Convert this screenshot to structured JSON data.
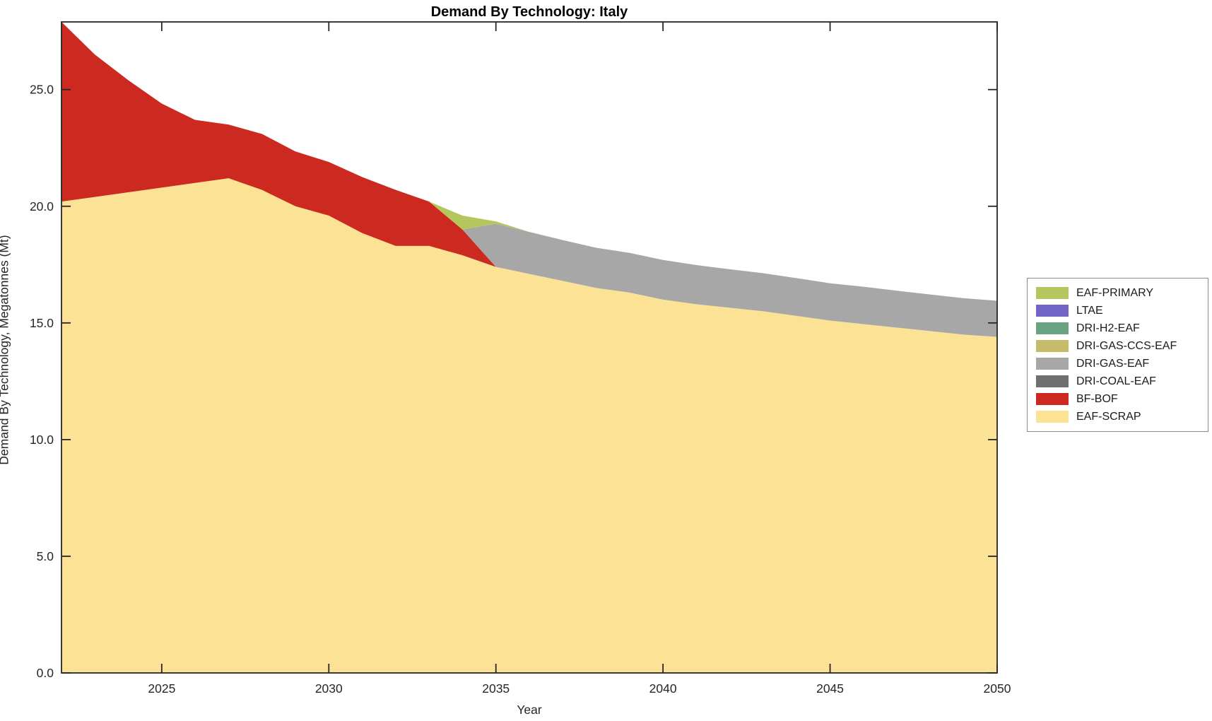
{
  "title": "Demand By Technology: Italy",
  "chart_data": {
    "type": "area",
    "stacked": true,
    "title": "Demand By Technology: Italy",
    "xlabel": "Year",
    "ylabel": "Demand By Technology, Megatonnes (Mt)",
    "xlim": [
      2022,
      2050
    ],
    "ylim": [
      0,
      27.9
    ],
    "xticks": [
      2025,
      2030,
      2035,
      2040,
      2045,
      2050
    ],
    "yticks": [
      0,
      5,
      10,
      15,
      20,
      25
    ],
    "ytick_labels": [
      "0.0",
      "5.0",
      "10.0",
      "15.0",
      "20.0",
      "25.0"
    ],
    "grid": false,
    "legend_position": "right-outside",
    "axis_color": "#262626",
    "x": [
      2022,
      2023,
      2024,
      2025,
      2026,
      2027,
      2028,
      2029,
      2030,
      2031,
      2032,
      2033,
      2034,
      2035,
      2036,
      2037,
      2038,
      2039,
      2040,
      2041,
      2042,
      2043,
      2044,
      2045,
      2046,
      2047,
      2048,
      2049,
      2050
    ],
    "series": [
      {
        "name": "EAF-SCRAP",
        "color": "#fbe294",
        "values": [
          20.2,
          20.4,
          20.6,
          20.8,
          21.0,
          21.2,
          20.7,
          20.0,
          19.6,
          18.85,
          18.3,
          18.3,
          17.9,
          17.4,
          17.1,
          16.8,
          16.5,
          16.3,
          16.0,
          15.8,
          15.65,
          15.5,
          15.3,
          15.1,
          14.95,
          14.8,
          14.65,
          14.5,
          14.4
        ]
      },
      {
        "name": "BF-BOF",
        "color": "#cc2a20",
        "values": [
          7.7,
          6.1,
          4.8,
          3.6,
          2.7,
          2.3,
          2.4,
          2.35,
          2.3,
          2.4,
          2.4,
          1.9,
          1.1,
          0,
          0,
          0,
          0,
          0,
          0,
          0,
          0,
          0,
          0,
          0,
          0,
          0,
          0,
          0,
          0
        ]
      },
      {
        "name": "DRI-COAL-EAF",
        "color": "#6f6f6f",
        "values": [
          0,
          0,
          0,
          0,
          0,
          0,
          0,
          0,
          0,
          0,
          0,
          0,
          0,
          0,
          0,
          0,
          0,
          0,
          0,
          0,
          0,
          0,
          0,
          0,
          0,
          0,
          0,
          0,
          0
        ]
      },
      {
        "name": "DRI-GAS-EAF",
        "color": "#a7a7a7",
        "values": [
          0,
          0,
          0,
          0,
          0,
          0,
          0,
          0,
          0,
          0,
          0,
          0,
          0,
          1.85,
          1.8,
          1.75,
          1.72,
          1.7,
          1.7,
          1.68,
          1.65,
          1.63,
          1.62,
          1.6,
          1.6,
          1.58,
          1.57,
          1.56,
          1.55
        ]
      },
      {
        "name": "DRI-GAS-CCS-EAF",
        "color": "#c6ba6b",
        "values": [
          0,
          0,
          0,
          0,
          0,
          0,
          0,
          0,
          0,
          0,
          0,
          0,
          0,
          0,
          0,
          0,
          0,
          0,
          0,
          0,
          0,
          0,
          0,
          0,
          0,
          0,
          0,
          0,
          0
        ]
      },
      {
        "name": "DRI-H2-EAF",
        "color": "#6aa284",
        "values": [
          0,
          0,
          0,
          0,
          0,
          0,
          0,
          0,
          0,
          0,
          0,
          0,
          0,
          0,
          0,
          0,
          0,
          0,
          0,
          0,
          0,
          0,
          0,
          0,
          0,
          0,
          0,
          0,
          0
        ]
      },
      {
        "name": "LTAE",
        "color": "#7164c4",
        "values": [
          0,
          0,
          0,
          0,
          0,
          0,
          0,
          0,
          0,
          0,
          0,
          0,
          0,
          0,
          0,
          0,
          0,
          0,
          0,
          0,
          0,
          0,
          0,
          0,
          0,
          0,
          0,
          0,
          0
        ]
      },
      {
        "name": "EAF-PRIMARY",
        "color": "#b6c65f",
        "values": [
          0,
          0,
          0,
          0,
          0,
          0,
          0,
          0,
          0,
          0,
          0,
          0,
          0.6,
          0.1,
          0,
          0,
          0,
          0,
          0,
          0,
          0,
          0,
          0,
          0,
          0,
          0,
          0,
          0,
          0
        ]
      }
    ],
    "legend": {
      "items_top_to_bottom": [
        {
          "label": "EAF-PRIMARY",
          "color": "#b6c65f"
        },
        {
          "label": "LTAE",
          "color": "#7164c4"
        },
        {
          "label": "DRI-H2-EAF",
          "color": "#6aa284"
        },
        {
          "label": "DRI-GAS-CCS-EAF",
          "color": "#c6ba6b"
        },
        {
          "label": "DRI-GAS-EAF",
          "color": "#a7a7a7"
        },
        {
          "label": "DRI-COAL-EAF",
          "color": "#6f6f6f"
        },
        {
          "label": "BF-BOF",
          "color": "#cc2a20"
        },
        {
          "label": "EAF-SCRAP",
          "color": "#fbe294"
        }
      ]
    }
  }
}
